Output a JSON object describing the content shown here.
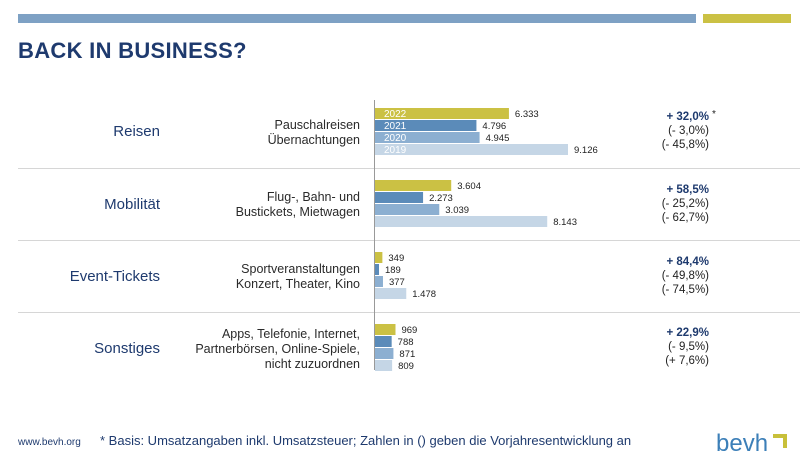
{
  "title": "BACK IN BUSINESS?",
  "footer": {
    "url": "www.bevh.org",
    "note": "* Basis: Umsatzangaben inkl. Umsatzsteuer; Zahlen in () geben die Vorjahresentwicklung an",
    "logo": "bevh"
  },
  "colors": {
    "dark_blue": "#1e3a6e",
    "bar_2022": "#cbc144",
    "bar_2021": "#5b8bb9",
    "bar_2020": "#8cafd1",
    "bar_2019": "#c5d6e6",
    "top_bar_blue": "#7ea1c4",
    "top_bar_yellow": "#cbc144"
  },
  "chart_data": {
    "type": "bar",
    "orientation": "horizontal",
    "series_labels": [
      "2022",
      "2021",
      "2020",
      "2019"
    ],
    "ylim": [
      0,
      10000
    ],
    "groups": [
      {
        "category": "Reisen",
        "description": [
          "Pauschalreisen",
          "Übernachtungen"
        ],
        "values": [
          6333,
          4796,
          4945,
          9126
        ],
        "labels": [
          "6.333",
          "4.796",
          "4.945",
          "9.126"
        ],
        "change_main": "+ 32,0%",
        "change_prev": [
          "(- 3,0%)",
          "(- 45,8%)"
        ],
        "footnote_mark": "*"
      },
      {
        "category": "Mobilität",
        "description": [
          "Flug-, Bahn- und",
          "Bustickets, Mietwagen"
        ],
        "values": [
          3604,
          2273,
          3039,
          8143
        ],
        "labels": [
          "3.604",
          "2.273",
          "3.039",
          "8.143"
        ],
        "change_main": "+ 58,5%",
        "change_prev": [
          "(- 25,2%)",
          "(- 62,7%)"
        ]
      },
      {
        "category": "Event-Tickets",
        "description": [
          "Sportveranstaltungen",
          "Konzert, Theater, Kino"
        ],
        "values": [
          349,
          189,
          377,
          1478
        ],
        "labels": [
          "349",
          "189",
          "377",
          "1.478"
        ],
        "change_main": "+ 84,4%",
        "change_prev": [
          "(- 49,8%)",
          "(- 74,5%)"
        ]
      },
      {
        "category": "Sonstiges",
        "description": [
          "Apps, Telefonie, Internet,",
          "Partnerbörsen, Online-Spiele,",
          "nicht zuzuordnen"
        ],
        "values": [
          969,
          788,
          871,
          809
        ],
        "labels": [
          "969",
          "788",
          "871",
          "809"
        ],
        "change_main": "+ 22,9%",
        "change_prev": [
          "(- 9,5%)",
          "(+ 7,6%)"
        ]
      }
    ]
  }
}
